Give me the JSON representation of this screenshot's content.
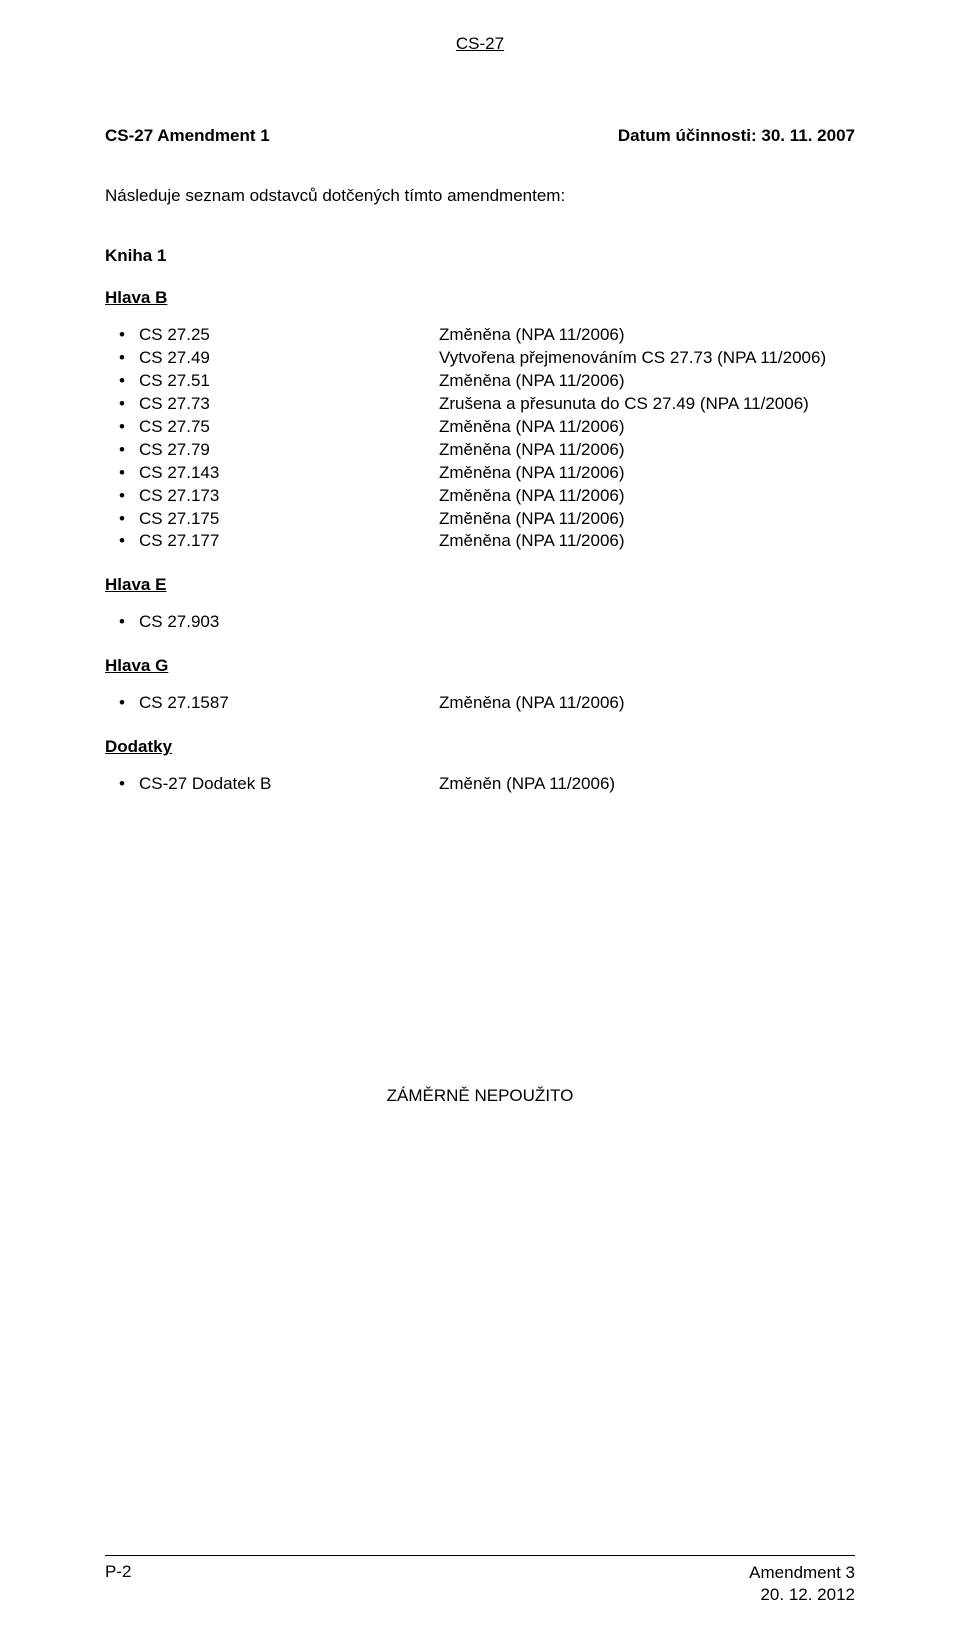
{
  "header_top": "CS-27",
  "title_left": "CS-27 Amendment 1",
  "title_right": "Datum účinnosti: 30. 11. 2007",
  "intro": "Následuje seznam odstavců dotčených tímto amendmentem:",
  "kniha_label": "Kniha 1",
  "sections": [
    {
      "label": "Hlava B",
      "items": [
        {
          "code": "CS 27.25",
          "desc": "Změněna (NPA 11/2006)"
        },
        {
          "code": "CS 27.49",
          "desc": "Vytvořena přejmenováním CS 27.73 (NPA 11/2006)"
        },
        {
          "code": "CS 27.51",
          "desc": "Změněna (NPA 11/2006)"
        },
        {
          "code": "CS 27.73",
          "desc": "Zrušena a přesunuta do CS 27.49 (NPA 11/2006)"
        },
        {
          "code": "CS 27.75",
          "desc": "Změněna (NPA 11/2006)"
        },
        {
          "code": "CS 27.79",
          "desc": "Změněna (NPA 11/2006)"
        },
        {
          "code": "CS 27.143",
          "desc": "Změněna (NPA 11/2006)"
        },
        {
          "code": "CS 27.173",
          "desc": "Změněna (NPA 11/2006)"
        },
        {
          "code": "CS 27.175",
          "desc": "Změněna (NPA 11/2006)"
        },
        {
          "code": "CS 27.177",
          "desc": "Změněna (NPA 11/2006)"
        }
      ]
    },
    {
      "label": "Hlava E",
      "items": [
        {
          "code": "CS 27.903",
          "desc": ""
        }
      ]
    },
    {
      "label": "Hlava G",
      "items": [
        {
          "code": "CS 27.1587",
          "desc": "Změněna (NPA 11/2006)"
        }
      ]
    },
    {
      "label": "Dodatky",
      "items": [
        {
          "code": "CS-27 Dodatek B",
          "desc": "Změněn (NPA 11/2006)"
        }
      ]
    }
  ],
  "blank_text": "ZÁMĚRNĚ NEPOUŽITO",
  "footer": {
    "page": "P-2",
    "amendment": "Amendment 3",
    "date": "20. 12. 2012"
  },
  "style": {
    "font_family": "Arial",
    "body_fontsize_pt": 12,
    "text_color": "#000000",
    "background_color": "#ffffff",
    "border_color": "#000000",
    "bullet_glyph": "•"
  }
}
